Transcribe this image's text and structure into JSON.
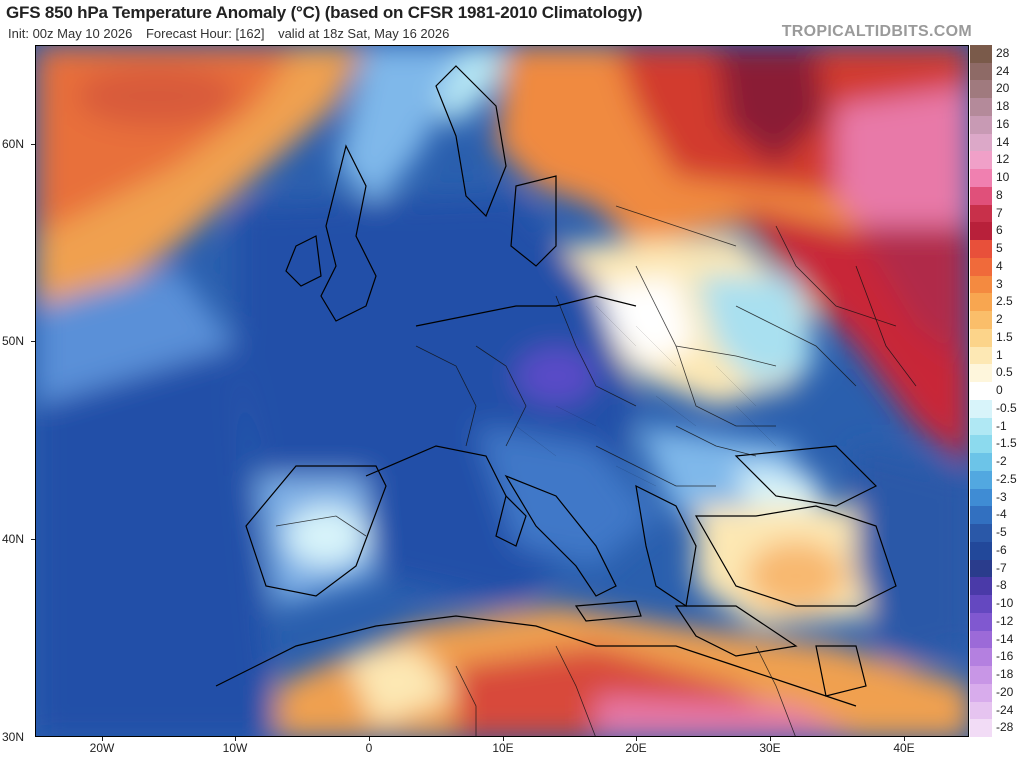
{
  "header": {
    "title": "GFS 850 hPa Temperature Anomaly (°C) (based on CFSR 1981-2010 Climatology)",
    "init": "Init: 00z May 10 2026",
    "forecast_hour": "Forecast Hour: [162]",
    "valid": "valid at 18z Sat, May 16 2026",
    "brand": "TROPICALTIDBITS.COM"
  },
  "map": {
    "lat_labels": [
      "60N",
      "50N",
      "40N",
      "30N"
    ],
    "lon_labels": [
      "20W",
      "10W",
      "0",
      "10E",
      "20E",
      "30E",
      "40E"
    ],
    "colors": {
      "deep_blue": "#1f4e9c",
      "mid_blue": "#3f78c8",
      "light_blue": "#7fb0e6",
      "cyan": "#a9e0f0",
      "white": "#ffffff",
      "yellow": "#fbe3a0",
      "orange": "#f0a050",
      "red": "#d64a2a",
      "dark_red": "#a8203a",
      "pink": "#e87aa6",
      "purple": "#6a50c0"
    }
  },
  "colorbar": {
    "labels": [
      "28",
      "24",
      "20",
      "18",
      "16",
      "14",
      "12",
      "10",
      "8",
      "7",
      "6",
      "5",
      "4",
      "3",
      "2.5",
      "2",
      "1.5",
      "1",
      "0.5",
      "0",
      "-0.5",
      "-1",
      "-1.5",
      "-2",
      "-2.5",
      "-3",
      "-4",
      "-5",
      "-6",
      "-7",
      "-8",
      "-10",
      "-12",
      "-14",
      "-16",
      "-18",
      "-20",
      "-24",
      "-28"
    ],
    "colors": [
      "#7a5a4a",
      "#8e6a66",
      "#a07a7e",
      "#b48a9a",
      "#c89ab4",
      "#dca8c8",
      "#f0a0c8",
      "#f080b0",
      "#e0507a",
      "#c8304a",
      "#b8203a",
      "#e8503a",
      "#f06a3a",
      "#f48a40",
      "#f8a650",
      "#fabe6a",
      "#fcd48a",
      "#fde8b4",
      "#fef6dc",
      "#ffffff",
      "#d8f4fa",
      "#b0e8f4",
      "#8cdaee",
      "#6cc4e8",
      "#52a8e0",
      "#3f8cd4",
      "#3270c0",
      "#2a58a8",
      "#22489a",
      "#2a3c8c",
      "#4a3aa8",
      "#6448c0",
      "#8058d0",
      "#9c6ad8",
      "#b480e0",
      "#c896e6",
      "#d8acec",
      "#e6c4f0",
      "#f2dcf6"
    ]
  }
}
